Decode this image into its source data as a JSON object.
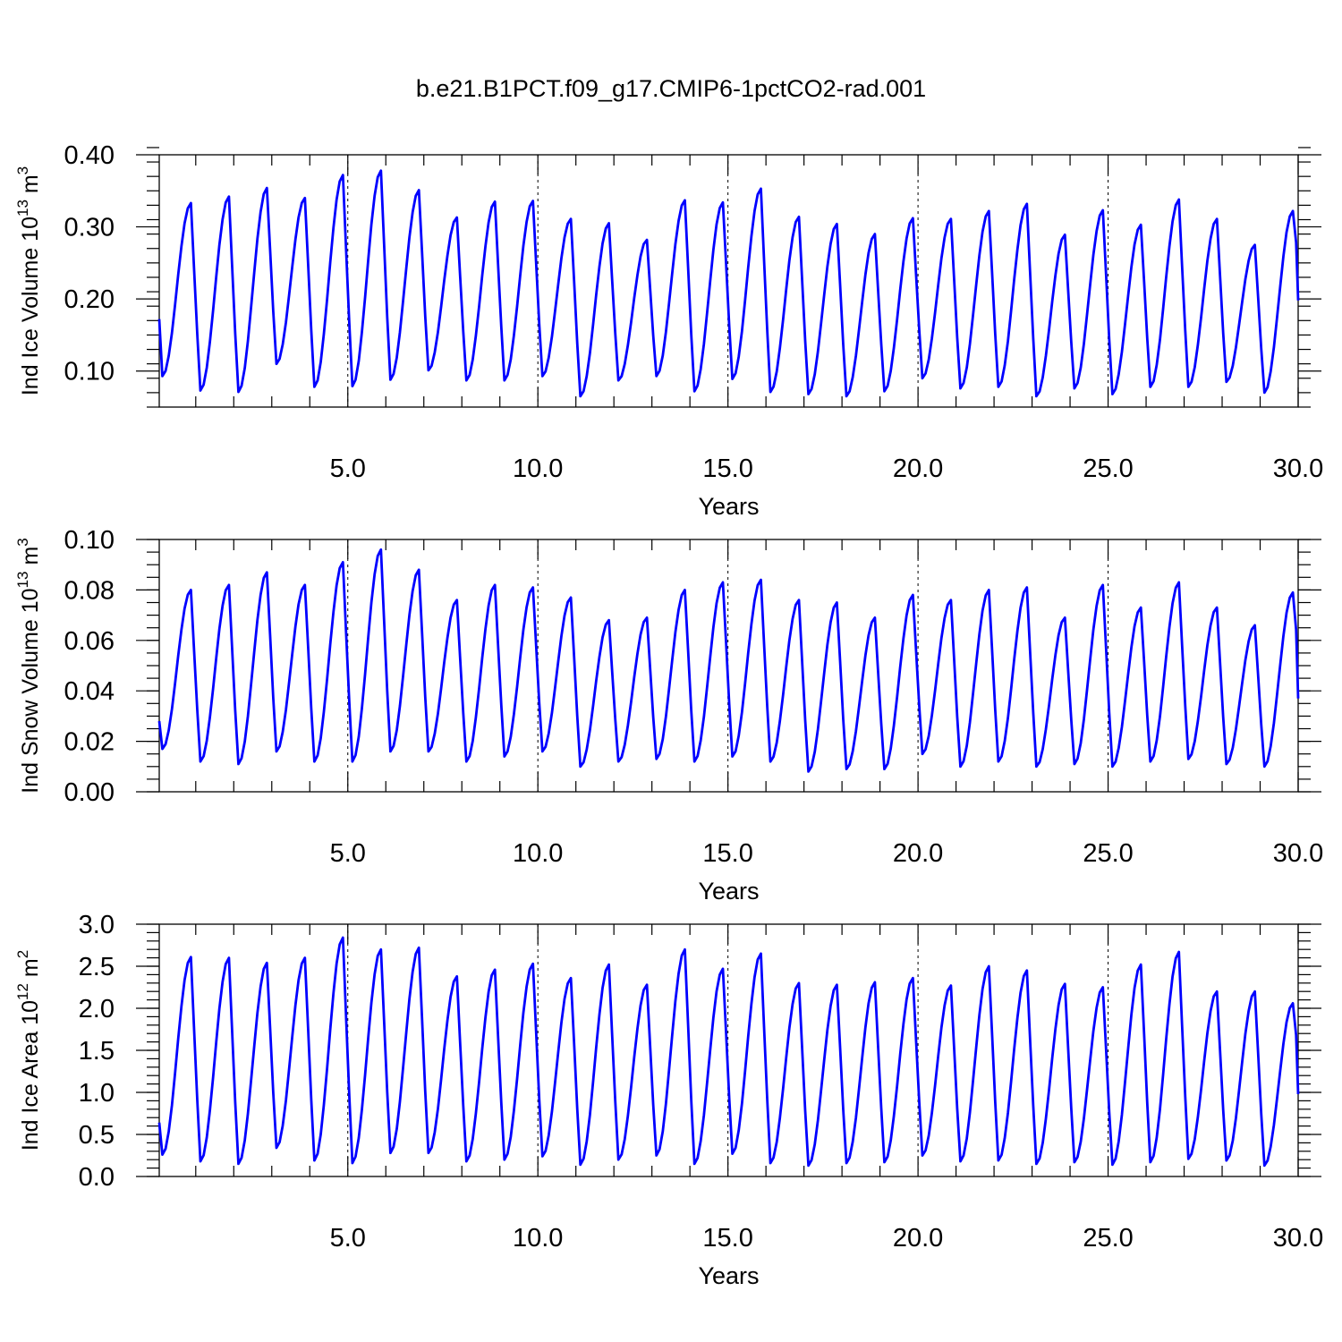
{
  "chart_data": {
    "title": "b.e21.B1PCT.f09_g17.CMIP6-1pctCO2-rad.001",
    "series_color": "#0000ff",
    "panels": [
      {
        "type": "line",
        "ylabel_main": "Ind Ice Volume 10",
        "ylabel_exp": "13",
        "ylabel_unit": " m",
        "ylabel_unit_exp": "3",
        "xlabel": "Years",
        "xlim": [
          0.04,
          30
        ],
        "ylim": [
          0.05,
          0.4
        ],
        "yticks": [
          0.1,
          0.2,
          0.3,
          0.4
        ],
        "ytick_labels": [
          "0.10",
          "0.20",
          "0.30",
          "0.40"
        ],
        "yminor_step": 0.02,
        "xticks": [
          5,
          10,
          15,
          20,
          25,
          30
        ],
        "xtick_labels": [
          "5.0",
          "10.0",
          "15.0",
          "20.0",
          "25.0",
          "30.0"
        ],
        "grid_x": true,
        "series": [
          {
            "start_year": 0.04,
            "step_years": 0.0833,
            "annual_max": [
              0.333,
              0.342,
              0.354,
              0.34,
              0.372,
              0.378,
              0.351,
              0.313,
              0.335,
              0.336,
              0.311,
              0.305,
              0.282,
              0.337,
              0.334,
              0.353,
              0.314,
              0.304,
              0.29,
              0.312,
              0.311,
              0.322,
              0.332,
              0.289,
              0.323,
              0.303,
              0.338,
              0.311,
              0.275,
              0.322
            ],
            "annual_min": [
              0.093,
              0.073,
              0.071,
              0.11,
              0.078,
              0.079,
              0.088,
              0.101,
              0.087,
              0.087,
              0.093,
              0.065,
              0.087,
              0.093,
              0.072,
              0.089,
              0.071,
              0.068,
              0.065,
              0.072,
              0.09,
              0.076,
              0.078,
              0.065,
              0.076,
              0.068,
              0.078,
              0.078,
              0.085,
              0.07
            ],
            "first_value": 0.172,
            "last_value": 0.198
          }
        ]
      },
      {
        "type": "line",
        "ylabel_main": "Ind Snow Volume 10",
        "ylabel_exp": "13",
        "ylabel_unit": " m",
        "ylabel_unit_exp": "3",
        "xlabel": "Years",
        "xlim": [
          0.04,
          30
        ],
        "ylim": [
          0.0,
          0.1
        ],
        "yticks": [
          0.0,
          0.02,
          0.04,
          0.06,
          0.08,
          0.1
        ],
        "ytick_labels": [
          "0.00",
          "0.02",
          "0.04",
          "0.06",
          "0.08",
          "0.10"
        ],
        "yminor_step": 0.005,
        "xticks": [
          5,
          10,
          15,
          20,
          25,
          30
        ],
        "xtick_labels": [
          "5.0",
          "10.0",
          "15.0",
          "20.0",
          "25.0",
          "30.0"
        ],
        "grid_x": true,
        "series": [
          {
            "start_year": 0.04,
            "step_years": 0.0833,
            "annual_max": [
              0.08,
              0.082,
              0.087,
              0.082,
              0.091,
              0.096,
              0.088,
              0.076,
              0.082,
              0.081,
              0.077,
              0.068,
              0.069,
              0.08,
              0.083,
              0.084,
              0.076,
              0.075,
              0.069,
              0.078,
              0.076,
              0.08,
              0.081,
              0.069,
              0.082,
              0.073,
              0.083,
              0.073,
              0.066,
              0.079
            ],
            "annual_min": [
              0.017,
              0.012,
              0.011,
              0.016,
              0.012,
              0.012,
              0.016,
              0.016,
              0.012,
              0.014,
              0.016,
              0.01,
              0.012,
              0.013,
              0.012,
              0.014,
              0.012,
              0.008,
              0.009,
              0.009,
              0.015,
              0.01,
              0.012,
              0.01,
              0.011,
              0.01,
              0.012,
              0.013,
              0.011,
              0.01
            ],
            "first_value": 0.028,
            "last_value": 0.037
          }
        ]
      },
      {
        "type": "line",
        "ylabel_main": "Ind Ice Area 10",
        "ylabel_exp": "12",
        "ylabel_unit": " m",
        "ylabel_unit_exp": "2",
        "xlabel": "Years",
        "xlim": [
          0.04,
          30
        ],
        "ylim": [
          0.0,
          3.0
        ],
        "yticks": [
          0.0,
          0.5,
          1.0,
          1.5,
          2.0,
          2.5,
          3.0
        ],
        "ytick_labels": [
          "0.0",
          "0.5",
          "1.0",
          "1.5",
          "2.0",
          "2.5",
          "3.0"
        ],
        "yminor_step": 0.1,
        "xticks": [
          5,
          10,
          15,
          20,
          25,
          30
        ],
        "xtick_labels": [
          "5.0",
          "10.0",
          "15.0",
          "20.0",
          "25.0",
          "30.0"
        ],
        "grid_x": true,
        "series": [
          {
            "start_year": 0.04,
            "step_years": 0.0833,
            "annual_max": [
              2.61,
              2.6,
              2.54,
              2.6,
              2.84,
              2.7,
              2.72,
              2.38,
              2.46,
              2.53,
              2.36,
              2.52,
              2.28,
              2.7,
              2.47,
              2.65,
              2.3,
              2.28,
              2.31,
              2.36,
              2.27,
              2.5,
              2.45,
              2.29,
              2.25,
              2.52,
              2.67,
              2.2,
              2.2,
              2.06
            ],
            "annual_min": [
              0.26,
              0.18,
              0.15,
              0.34,
              0.19,
              0.16,
              0.28,
              0.28,
              0.18,
              0.2,
              0.24,
              0.14,
              0.2,
              0.25,
              0.15,
              0.27,
              0.16,
              0.13,
              0.16,
              0.17,
              0.25,
              0.18,
              0.19,
              0.15,
              0.17,
              0.14,
              0.17,
              0.21,
              0.19,
              0.13
            ],
            "first_value": 0.64,
            "last_value": 0.98
          }
        ]
      }
    ]
  }
}
